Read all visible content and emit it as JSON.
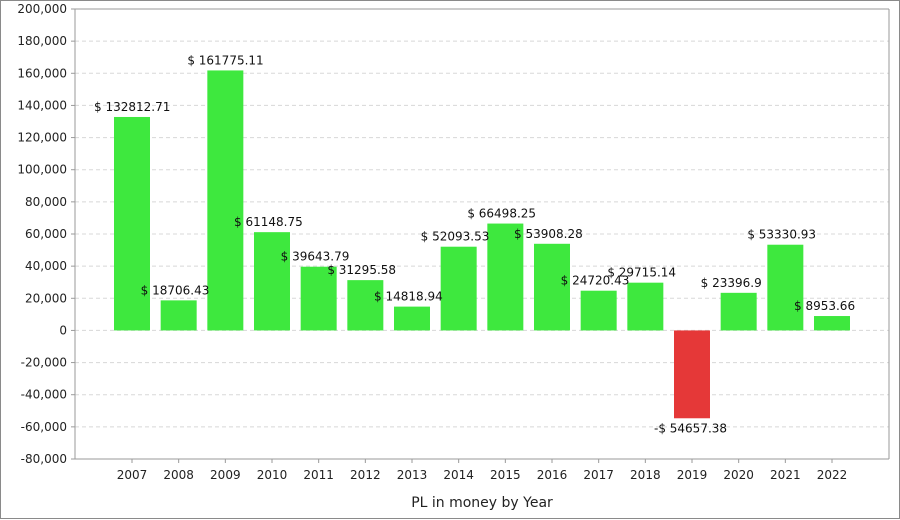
{
  "chart_data": {
    "type": "bar",
    "xlabel": "PL in money by Year",
    "ylabel": "",
    "ylim": [
      -80000,
      200000
    ],
    "yticks": [
      200000,
      180000,
      160000,
      140000,
      120000,
      100000,
      80000,
      60000,
      40000,
      20000,
      0,
      -20000,
      -40000,
      -60000,
      -80000
    ],
    "ytick_labels": [
      "200,000",
      "180,000",
      "160,000",
      "140,000",
      "120,000",
      "100,000",
      "80,000",
      "60,000",
      "40,000",
      "20,000",
      "0",
      "-20,000",
      "-40,000",
      "-60,000",
      "-80,000"
    ],
    "categories": [
      "2007",
      "2008",
      "2009",
      "2010",
      "2011",
      "2012",
      "2013",
      "2014",
      "2015",
      "2016",
      "2017",
      "2018",
      "2019",
      "2020",
      "2021",
      "2022"
    ],
    "values": [
      132812.71,
      18706.43,
      161775.11,
      61148.75,
      39643.79,
      31295.58,
      14818.94,
      52093.53,
      66498.25,
      53908.28,
      24720.43,
      29715.14,
      -54657.38,
      23396.9,
      53330.93,
      8953.66
    ],
    "data_labels": [
      "$ 132812.71",
      "$ 18706.43",
      "$ 161775.11",
      "$ 61148.75",
      "$ 39643.79",
      "$ 31295.58",
      "$ 14818.94",
      "$ 52093.53",
      "$ 66498.25",
      "$ 53908.28",
      "$ 24720.43",
      "$ 29715.14",
      "-$ 54657.38",
      "$ 23396.9",
      "$ 53330.93",
      "$ 8953.66"
    ],
    "grid": true,
    "colors": {
      "positive": "#3ee83e",
      "negative": "#e53838",
      "grid": "#d8d8d8",
      "axis": "#9a9a9a"
    }
  }
}
